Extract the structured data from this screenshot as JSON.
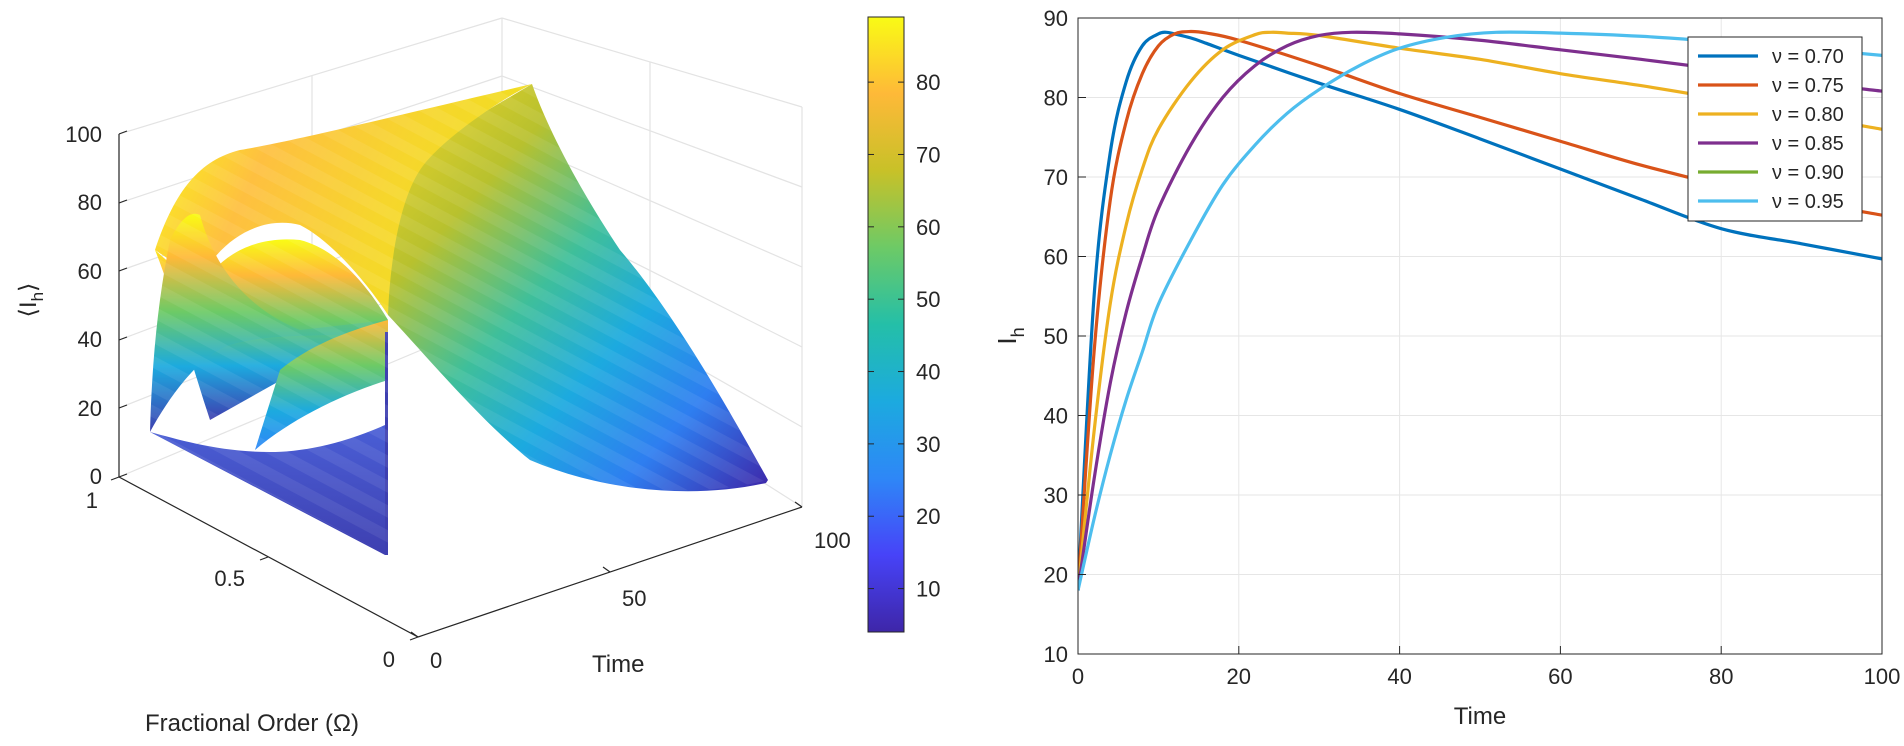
{
  "chart_data": [
    {
      "type": "surface",
      "xlabel": "Time",
      "ylabel": "Fractional Order (Ω)",
      "zlabel": "⟨I",
      "zlabel_sub": "h",
      "zlabel_close": "⟩",
      "x_ticks": [
        "0",
        "50",
        "100"
      ],
      "y_ticks": [
        "0",
        "0.5",
        "1"
      ],
      "z_ticks": [
        "0",
        "20",
        "40",
        "60",
        "80",
        "100"
      ],
      "xlim": [
        0,
        100
      ],
      "ylim": [
        0,
        1
      ],
      "zlim": [
        0,
        100
      ],
      "colorbar": {
        "min": 4,
        "max": 89,
        "ticks": [
          "10",
          "20",
          "30",
          "40",
          "50",
          "60",
          "70",
          "80"
        ],
        "tick_values": [
          10,
          20,
          30,
          40,
          50,
          60,
          70,
          80
        ]
      },
      "colormap": [
        "#3e26a8",
        "#4743f8",
        "#2e87f7",
        "#1caadf",
        "#24bfa8",
        "#6dca66",
        "#c8c128",
        "#feb938",
        "#f9fb15"
      ]
    },
    {
      "type": "line",
      "xlabel": "Time",
      "ylabel": "I",
      "ylabel_sub": "h",
      "xlim": [
        0,
        100
      ],
      "ylim": [
        10,
        90
      ],
      "x_ticks": [
        "0",
        "20",
        "40",
        "60",
        "80",
        "100"
      ],
      "y_ticks": [
        "10",
        "20",
        "30",
        "40",
        "50",
        "60",
        "70",
        "80",
        "90"
      ],
      "grid": true,
      "legend_position": "top-right",
      "series": [
        {
          "name": "ν = 0.70",
          "color": "#0072bd",
          "x": [
            0,
            2,
            4,
            6,
            8,
            10,
            11,
            12,
            14,
            16,
            20,
            30,
            40,
            50,
            60,
            70,
            80,
            90,
            100
          ],
          "y": [
            18,
            55,
            73,
            82,
            86.5,
            88,
            88.2,
            88,
            87.5,
            86.8,
            85.3,
            81.8,
            78.5,
            74.8,
            71,
            67.2,
            63.5,
            61.6,
            59.7
          ]
        },
        {
          "name": "ν = 0.75",
          "color": "#d95319",
          "x": [
            0,
            2,
            4,
            6,
            8,
            10,
            12,
            14,
            16,
            20,
            30,
            40,
            50,
            60,
            70,
            80,
            90,
            100
          ],
          "y": [
            18,
            48,
            67,
            77,
            83,
            86.5,
            88,
            88.3,
            88.1,
            87.2,
            84,
            80.5,
            77.5,
            74.5,
            71.5,
            69,
            67,
            65.2
          ]
        },
        {
          "name": "ν = 0.80",
          "color": "#edb120",
          "x": [
            0,
            2,
            4,
            6,
            8,
            10,
            14,
            18,
            22,
            24,
            26,
            30,
            40,
            50,
            60,
            70,
            80,
            90,
            100
          ],
          "y": [
            18,
            38,
            54,
            64,
            71,
            76,
            82,
            86,
            87.9,
            88.2,
            88.1,
            87.8,
            86.2,
            84.8,
            83,
            81.5,
            79.8,
            77.8,
            76
          ]
        },
        {
          "name": "ν = 0.85",
          "color": "#7e2f8e",
          "x": [
            0,
            2,
            4,
            6,
            8,
            10,
            14,
            18,
            22,
            26,
            30,
            34,
            40,
            50,
            60,
            70,
            80,
            90,
            100
          ],
          "y": [
            18,
            32,
            44,
            53,
            60,
            66,
            74,
            80,
            84,
            86.5,
            87.8,
            88.2,
            88,
            87.2,
            86,
            84.8,
            83.5,
            82,
            80.8
          ]
        },
        {
          "name": "ν = 0.90",
          "color": "#77ac30",
          "x": [],
          "y": []
        },
        {
          "name": "ν = 0.95",
          "color": "#4dbeee",
          "x": [
            0,
            2,
            4,
            6,
            8,
            10,
            14,
            18,
            22,
            26,
            30,
            35,
            40,
            46,
            52,
            60,
            70,
            80,
            90,
            100
          ],
          "y": [
            18,
            27,
            35,
            42,
            48,
            54,
            62,
            69,
            74,
            78,
            81,
            84,
            86.2,
            87.6,
            88.2,
            88.1,
            87.7,
            87,
            86.2,
            85.3
          ]
        }
      ]
    }
  ]
}
